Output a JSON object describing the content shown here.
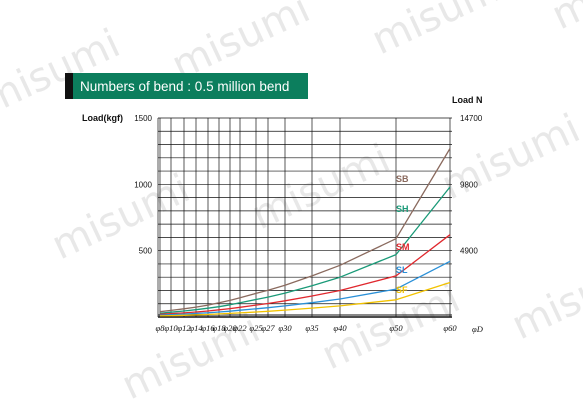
{
  "chart_data": {
    "type": "line",
    "title": "Numbers of bend : 0.5 million bend",
    "ylabel_left": "Load(kgf)",
    "ylabel_right": "Load N",
    "xlabel": "φD",
    "ylim": [
      0,
      1500
    ],
    "xlim": [
      8,
      60
    ],
    "grid": true,
    "watermark": "misumi",
    "yticks_left": [
      {
        "value": 500,
        "label": "500"
      },
      {
        "value": 1000,
        "label": "1000"
      },
      {
        "value": 1500,
        "label": "1500"
      }
    ],
    "yticks_right": [
      {
        "value": 500,
        "label": "4900"
      },
      {
        "value": 1000,
        "label": "9800"
      },
      {
        "value": 1500,
        "label": "14700"
      }
    ],
    "xticks": [
      {
        "value": 8,
        "label": "φ8"
      },
      {
        "value": 10,
        "label": "φ10"
      },
      {
        "value": 12,
        "label": "φ12"
      },
      {
        "value": 14,
        "label": "φ14"
      },
      {
        "value": 16,
        "label": "φ16"
      },
      {
        "value": 18,
        "label": "φ18"
      },
      {
        "value": 20,
        "label": "φ20"
      },
      {
        "value": 22,
        "label": "φ22"
      },
      {
        "value": 25,
        "label": "φ25"
      },
      {
        "value": 27,
        "label": "φ27"
      },
      {
        "value": 30,
        "label": "φ30"
      },
      {
        "value": 35,
        "label": "φ35"
      },
      {
        "value": 40,
        "label": "φ40"
      },
      {
        "value": 50,
        "label": "φ50"
      },
      {
        "value": 60,
        "label": "φ60"
      }
    ],
    "gridlines_y": [
      100,
      200,
      300,
      400,
      500,
      600,
      700,
      800,
      900,
      1000,
      1100,
      1200,
      1300,
      1400,
      1500
    ],
    "series": [
      {
        "name": "SB",
        "color": "#8a6a5e",
        "x": [
          8,
          10,
          12,
          14,
          16,
          18,
          20,
          22,
          25,
          27,
          30,
          35,
          40,
          50,
          60
        ],
        "y": [
          40,
          50,
          62,
          75,
          90,
          107,
          125,
          145,
          178,
          202,
          240,
          310,
          390,
          590,
          1270
        ]
      },
      {
        "name": "SH",
        "color": "#1a9a78",
        "x": [
          8,
          10,
          12,
          14,
          16,
          18,
          20,
          22,
          25,
          27,
          30,
          35,
          40,
          50,
          60
        ],
        "y": [
          28,
          36,
          45,
          55,
          66,
          78,
          92,
          107,
          132,
          150,
          180,
          235,
          300,
          470,
          980
        ]
      },
      {
        "name": "SM",
        "color": "#e0282e",
        "x": [
          8,
          10,
          12,
          14,
          16,
          18,
          20,
          22,
          25,
          27,
          30,
          35,
          40,
          50,
          60
        ],
        "y": [
          20,
          25,
          31,
          38,
          45,
          54,
          63,
          73,
          90,
          102,
          122,
          158,
          200,
          310,
          620
        ]
      },
      {
        "name": "SL",
        "color": "#2a90d8",
        "x": [
          8,
          10,
          12,
          14,
          16,
          18,
          20,
          22,
          25,
          27,
          30,
          35,
          40,
          50,
          60
        ],
        "y": [
          14,
          18,
          22,
          27,
          32,
          38,
          44,
          51,
          62,
          70,
          84,
          108,
          136,
          210,
          420
        ]
      },
      {
        "name": "SF",
        "color": "#f2c200",
        "x": [
          8,
          10,
          12,
          14,
          16,
          18,
          20,
          22,
          25,
          27,
          30,
          35,
          40,
          50,
          60
        ],
        "y": [
          8,
          10,
          13,
          16,
          19,
          23,
          27,
          31,
          38,
          43,
          52,
          67,
          84,
          130,
          260
        ]
      }
    ]
  }
}
